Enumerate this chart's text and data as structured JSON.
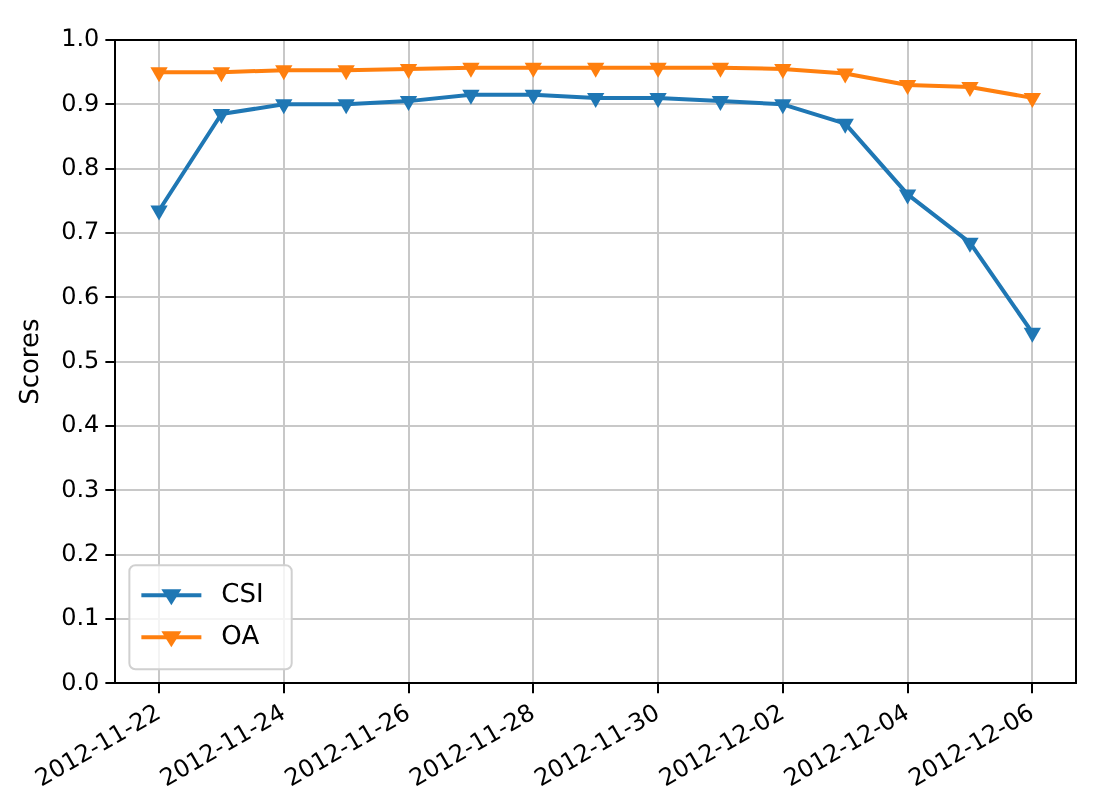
{
  "chart_data": {
    "type": "line",
    "ylabel": "Scores",
    "x": [
      "2012-11-22",
      "2012-11-23",
      "2012-11-24",
      "2012-11-25",
      "2012-11-26",
      "2012-11-27",
      "2012-11-28",
      "2012-11-29",
      "2012-11-30",
      "2012-12-01",
      "2012-12-02",
      "2012-12-03",
      "2012-12-04",
      "2012-12-05",
      "2012-12-06"
    ],
    "series": [
      {
        "name": "CSI",
        "color": "#1f77b4",
        "values": [
          0.735,
          0.885,
          0.9,
          0.9,
          0.905,
          0.915,
          0.915,
          0.91,
          0.91,
          0.905,
          0.9,
          0.87,
          0.76,
          0.685,
          0.545
        ]
      },
      {
        "name": "OA",
        "color": "#ff7f0e",
        "values": [
          0.95,
          0.95,
          0.953,
          0.953,
          0.955,
          0.957,
          0.957,
          0.957,
          0.957,
          0.957,
          0.955,
          0.948,
          0.93,
          0.927,
          0.91
        ]
      }
    ],
    "xlim": [
      "2012-11-21T07:12",
      "2012-12-06T16:48"
    ],
    "xticks": [
      "2012-11-22",
      "2012-11-24",
      "2012-11-26",
      "2012-11-28",
      "2012-11-30",
      "2012-12-02",
      "2012-12-04",
      "2012-12-06"
    ],
    "ylim": [
      0,
      1
    ],
    "yticks": [
      {
        "value": 0,
        "label": "0.0"
      },
      0.1,
      0.2,
      0.3,
      0.4,
      0.5,
      0.6,
      0.7,
      0.8,
      0.9,
      {
        "value": 1,
        "label": "1.0"
      }
    ],
    "grid": true,
    "legend": "bottom left",
    "marker": "triangle",
    "line_style": "solid"
  }
}
